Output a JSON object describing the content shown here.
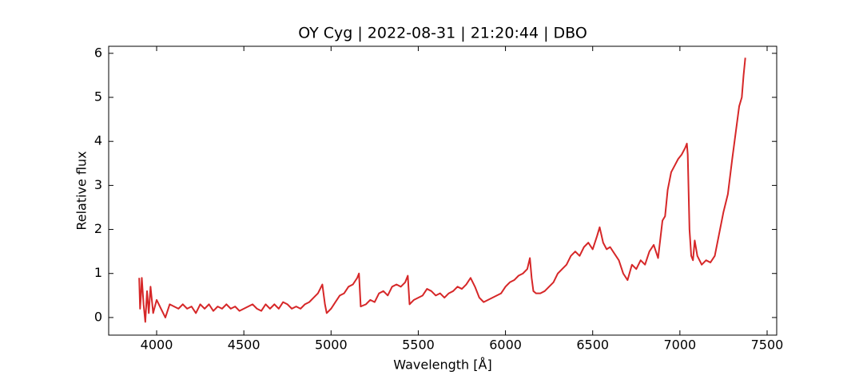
{
  "chart_data": {
    "type": "line",
    "title": "OY Cyg | 2022-08-31 | 21:20:44 | DBO",
    "x_label": "Wavelength [Å]",
    "y_label": "Relative flux",
    "color": "#d62728",
    "xlim": [
      3725,
      7555
    ],
    "ylim": [
      -0.4,
      6.16
    ],
    "xticks": [
      4000,
      4500,
      5000,
      5500,
      6000,
      6500,
      7000,
      7500
    ],
    "yticks": [
      0,
      1,
      2,
      3,
      4,
      5,
      6
    ],
    "x": [
      3900,
      3905,
      3910,
      3915,
      3925,
      3935,
      3945,
      3955,
      3965,
      3980,
      4000,
      4025,
      4050,
      4075,
      4100,
      4125,
      4150,
      4175,
      4200,
      4225,
      4250,
      4275,
      4300,
      4325,
      4350,
      4375,
      4400,
      4425,
      4450,
      4475,
      4500,
      4525,
      4550,
      4575,
      4600,
      4625,
      4650,
      4675,
      4700,
      4725,
      4750,
      4775,
      4800,
      4825,
      4850,
      4875,
      4900,
      4925,
      4950,
      4965,
      4975,
      5000,
      5025,
      5050,
      5075,
      5100,
      5125,
      5150,
      5160,
      5170,
      5200,
      5225,
      5250,
      5275,
      5300,
      5325,
      5350,
      5375,
      5400,
      5425,
      5440,
      5450,
      5475,
      5500,
      5525,
      5550,
      5575,
      5600,
      5625,
      5650,
      5675,
      5700,
      5725,
      5750,
      5775,
      5800,
      5825,
      5850,
      5875,
      5900,
      5925,
      5950,
      5975,
      6000,
      6025,
      6050,
      6075,
      6100,
      6125,
      6140,
      6150,
      6160,
      6175,
      6200,
      6225,
      6250,
      6275,
      6300,
      6325,
      6350,
      6375,
      6400,
      6425,
      6450,
      6475,
      6500,
      6525,
      6540,
      6560,
      6580,
      6600,
      6625,
      6650,
      6675,
      6700,
      6725,
      6750,
      6775,
      6800,
      6825,
      6850,
      6875,
      6900,
      6915,
      6930,
      6950,
      6970,
      6990,
      7010,
      7030,
      7040,
      7045,
      7055,
      7065,
      7075,
      7085,
      7100,
      7125,
      7150,
      7175,
      7200,
      7225,
      7250,
      7275,
      7300,
      7320,
      7340,
      7355,
      7365,
      7375
    ],
    "values": [
      0.9,
      0.2,
      0.5,
      0.9,
      0.3,
      -0.1,
      0.6,
      0.1,
      0.7,
      0.1,
      0.4,
      0.2,
      0.0,
      0.3,
      0.25,
      0.2,
      0.3,
      0.2,
      0.25,
      0.1,
      0.3,
      0.2,
      0.3,
      0.15,
      0.25,
      0.2,
      0.3,
      0.2,
      0.25,
      0.15,
      0.2,
      0.25,
      0.3,
      0.2,
      0.15,
      0.3,
      0.2,
      0.3,
      0.2,
      0.35,
      0.3,
      0.2,
      0.25,
      0.2,
      0.3,
      0.35,
      0.45,
      0.55,
      0.75,
      0.3,
      0.1,
      0.2,
      0.35,
      0.5,
      0.55,
      0.7,
      0.75,
      0.9,
      1.0,
      0.25,
      0.3,
      0.4,
      0.35,
      0.55,
      0.6,
      0.5,
      0.7,
      0.75,
      0.7,
      0.8,
      0.95,
      0.3,
      0.4,
      0.45,
      0.5,
      0.65,
      0.6,
      0.5,
      0.55,
      0.45,
      0.55,
      0.6,
      0.7,
      0.65,
      0.75,
      0.9,
      0.7,
      0.45,
      0.35,
      0.4,
      0.45,
      0.5,
      0.55,
      0.7,
      0.8,
      0.85,
      0.95,
      1.0,
      1.1,
      1.35,
      0.9,
      0.6,
      0.55,
      0.55,
      0.6,
      0.7,
      0.8,
      1.0,
      1.1,
      1.2,
      1.4,
      1.5,
      1.4,
      1.6,
      1.7,
      1.55,
      1.85,
      2.05,
      1.7,
      1.55,
      1.6,
      1.45,
      1.3,
      1.0,
      0.85,
      1.2,
      1.1,
      1.3,
      1.2,
      1.5,
      1.65,
      1.35,
      2.2,
      2.3,
      2.9,
      3.3,
      3.45,
      3.6,
      3.7,
      3.85,
      3.95,
      3.7,
      2.0,
      1.4,
      1.3,
      1.75,
      1.4,
      1.2,
      1.3,
      1.25,
      1.4,
      1.9,
      2.4,
      2.8,
      3.6,
      4.2,
      4.8,
      5.0,
      5.5,
      5.9
    ]
  }
}
